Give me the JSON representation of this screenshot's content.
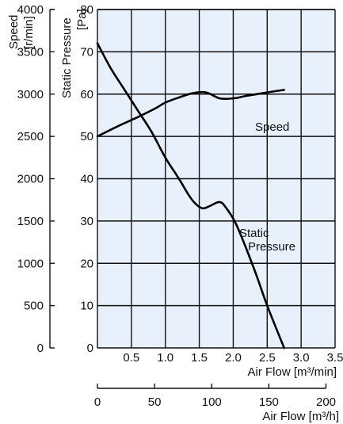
{
  "chart_data": {
    "type": "line",
    "axes": {
      "speed": {
        "title_line1": "Speed",
        "title_line2": "[r/min]",
        "range": [
          0,
          4000
        ],
        "ticks": [
          "0",
          "500",
          "1000",
          "1500",
          "2000",
          "2500",
          "3000",
          "3500",
          "4000"
        ]
      },
      "pressure": {
        "title_line1": "Static Pressure",
        "title_line2": "[Pa]",
        "range": [
          0,
          80
        ],
        "ticks": [
          "0",
          "10",
          "20",
          "30",
          "40",
          "50",
          "60",
          "70",
          "80"
        ]
      },
      "airflow_min": {
        "title": "Air Flow [m³/min]",
        "range": [
          0,
          3.5
        ],
        "ticks": [
          "0.5",
          "1.0",
          "1.5",
          "2.0",
          "2.5",
          "3.0",
          "3.5"
        ]
      },
      "airflow_h": {
        "title": "Air Flow  [m³/h]",
        "range": [
          0,
          210
        ],
        "ticks": [
          "0",
          "50",
          "100",
          "150",
          "200"
        ]
      }
    },
    "series": [
      {
        "name": "Speed",
        "axis": "speed",
        "x": [
          0,
          0.3,
          0.6,
          0.85,
          1.0,
          1.2,
          1.4,
          1.6,
          1.8,
          2.0,
          2.2,
          2.5,
          2.75
        ],
        "y": [
          2500,
          2620,
          2730,
          2830,
          2900,
          2960,
          3010,
          3020,
          2950,
          2950,
          2980,
          3020,
          3050
        ]
      },
      {
        "name": "Static Pressure",
        "label_line1": "Static",
        "label_line2": "Pressure",
        "axis": "pressure",
        "x": [
          0,
          0.2,
          0.4,
          0.6,
          0.8,
          1.0,
          1.2,
          1.35,
          1.45,
          1.55,
          1.65,
          1.8,
          1.9,
          2.05,
          2.3,
          2.5,
          2.75
        ],
        "y": [
          72,
          66,
          61,
          56,
          51,
          45,
          40,
          36,
          34,
          33,
          33.5,
          34.5,
          33,
          29,
          19,
          10,
          0
        ]
      }
    ],
    "grid": true
  }
}
